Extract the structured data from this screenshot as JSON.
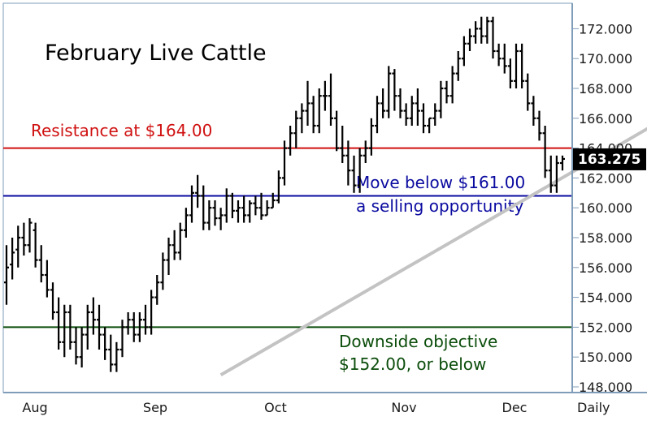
{
  "chart_data": {
    "type": "bar",
    "title": "February Live Cattle",
    "x_labels": [
      "Aug",
      "Sep",
      "Oct",
      "Nov",
      "Dec"
    ],
    "frequency_label": "Daily",
    "ylim": [
      148,
      174
    ],
    "y_ticks": [
      {
        "value": 148,
        "label": "148.000"
      },
      {
        "value": 150,
        "label": "150.000"
      },
      {
        "value": 152,
        "label": "152.000"
      },
      {
        "value": 154,
        "label": "154.000"
      },
      {
        "value": 156,
        "label": "156.000"
      },
      {
        "value": 158,
        "label": "158.000"
      },
      {
        "value": 160,
        "label": "160.000"
      },
      {
        "value": 162,
        "label": "162.000"
      },
      {
        "value": 164,
        "label": "164.000"
      },
      {
        "value": 166,
        "label": "166.000"
      },
      {
        "value": 168,
        "label": "168.000"
      },
      {
        "value": 170,
        "label": "170.000"
      },
      {
        "value": 172,
        "label": "172.000"
      }
    ],
    "last_price": {
      "value": 163.275,
      "label": "163.275"
    },
    "lines": [
      {
        "name": "resistance",
        "value": 164.0,
        "color": "#d01010",
        "label": "Resistance at $164.00"
      },
      {
        "name": "support",
        "value": 160.8,
        "color": "#0a0aa0",
        "label1": "Move below $161.00",
        "label2": "a selling opportunity"
      },
      {
        "name": "objective",
        "value": 152.0,
        "color": "#0b4d0b",
        "label1": "Downside objective",
        "label2": "$152.00, or below"
      }
    ],
    "trendline": {
      "start": [
        37,
        148.8
      ],
      "end": [
        147,
        173.5
      ],
      "color": "#c3c3c3"
    },
    "ohlc_color": "#000000",
    "bars": [
      [
        155.0,
        157.5,
        153.5,
        156.0
      ],
      [
        156.2,
        158.0,
        155.2,
        157.0
      ],
      [
        157.2,
        158.8,
        156.0,
        158.0
      ],
      [
        158.0,
        159.0,
        156.8,
        157.5
      ],
      [
        157.5,
        159.3,
        157.0,
        159.0
      ],
      [
        158.5,
        159.0,
        156.0,
        156.5
      ],
      [
        156.5,
        157.5,
        155.0,
        155.5
      ],
      [
        155.5,
        156.5,
        154.0,
        154.5
      ],
      [
        154.5,
        155.0,
        152.5,
        153.0
      ],
      [
        153.0,
        154.0,
        150.5,
        151.0
      ],
      [
        151.0,
        153.5,
        150.0,
        153.0
      ],
      [
        153.0,
        153.5,
        150.5,
        151.0
      ],
      [
        151.0,
        152.0,
        149.5,
        150.0
      ],
      [
        150.0,
        152.0,
        149.3,
        151.5
      ],
      [
        151.5,
        153.5,
        150.5,
        153.0
      ],
      [
        153.0,
        154.0,
        151.5,
        152.5
      ],
      [
        152.5,
        153.5,
        150.5,
        151.5
      ],
      [
        151.5,
        152.0,
        149.8,
        150.5
      ],
      [
        150.5,
        151.5,
        149.0,
        149.5
      ],
      [
        149.5,
        151.0,
        149.0,
        150.5
      ],
      [
        150.5,
        152.5,
        150.0,
        152.0
      ],
      [
        152.0,
        153.0,
        151.5,
        152.5
      ],
      [
        152.5,
        153.0,
        151.0,
        151.5
      ],
      [
        151.5,
        153.0,
        151.0,
        152.5
      ],
      [
        152.5,
        153.5,
        151.5,
        152.0
      ],
      [
        152.0,
        154.5,
        151.5,
        154.0
      ],
      [
        154.0,
        155.5,
        153.5,
        155.0
      ],
      [
        155.0,
        157.0,
        154.5,
        156.5
      ],
      [
        156.5,
        158.0,
        155.5,
        157.5
      ],
      [
        157.5,
        158.5,
        156.5,
        157.0
      ],
      [
        157.0,
        159.0,
        156.5,
        158.5
      ],
      [
        158.5,
        160.0,
        158.0,
        159.5
      ],
      [
        159.5,
        161.5,
        159.0,
        161.0
      ],
      [
        161.0,
        162.2,
        160.0,
        160.8
      ],
      [
        160.8,
        161.5,
        158.5,
        159.0
      ],
      [
        159.0,
        160.5,
        158.5,
        160.0
      ],
      [
        160.0,
        160.5,
        158.8,
        159.3
      ],
      [
        159.3,
        160.0,
        158.5,
        159.5
      ],
      [
        159.5,
        161.3,
        159.0,
        160.8
      ],
      [
        160.8,
        161.0,
        159.3,
        159.8
      ],
      [
        159.8,
        160.5,
        159.0,
        160.0
      ],
      [
        160.0,
        160.8,
        159.0,
        159.5
      ],
      [
        159.5,
        160.5,
        159.0,
        160.3
      ],
      [
        160.3,
        160.8,
        159.5,
        160.0
      ],
      [
        160.0,
        161.0,
        159.2,
        159.5
      ],
      [
        159.5,
        160.5,
        159.5,
        160.0
      ],
      [
        160.0,
        161.0,
        160.0,
        160.5
      ],
      [
        160.5,
        162.5,
        160.3,
        162.0
      ],
      [
        162.0,
        164.5,
        161.5,
        164.0
      ],
      [
        164.0,
        165.5,
        163.5,
        165.0
      ],
      [
        165.0,
        166.5,
        164.0,
        166.0
      ],
      [
        166.0,
        167.0,
        165.0,
        166.5
      ],
      [
        166.5,
        168.5,
        165.5,
        167.0
      ],
      [
        167.0,
        167.5,
        165.0,
        165.5
      ],
      [
        165.5,
        168.0,
        165.0,
        167.5
      ],
      [
        167.5,
        168.5,
        166.5,
        167.5
      ],
      [
        167.5,
        169.0,
        165.5,
        166.0
      ],
      [
        166.0,
        166.5,
        163.8,
        164.0
      ],
      [
        164.0,
        165.5,
        163.0,
        163.5
      ],
      [
        163.5,
        164.5,
        161.5,
        162.5
      ],
      [
        162.5,
        163.5,
        161.0,
        161.5
      ],
      [
        161.5,
        164.0,
        161.0,
        163.5
      ],
      [
        163.5,
        164.5,
        163.0,
        164.0
      ],
      [
        164.0,
        166.0,
        163.5,
        165.5
      ],
      [
        165.5,
        167.5,
        165.0,
        167.0
      ],
      [
        167.0,
        168.0,
        166.0,
        166.5
      ],
      [
        166.5,
        169.5,
        166.0,
        169.0
      ],
      [
        169.0,
        169.3,
        166.5,
        167.5
      ],
      [
        167.5,
        168.0,
        166.0,
        166.5
      ],
      [
        166.5,
        167.0,
        165.5,
        166.0
      ],
      [
        166.0,
        167.5,
        165.5,
        167.0
      ],
      [
        167.0,
        168.0,
        165.5,
        166.5
      ],
      [
        166.5,
        167.0,
        165.0,
        165.5
      ],
      [
        165.5,
        166.0,
        165.0,
        166.0
      ],
      [
        166.0,
        167.0,
        165.5,
        166.5
      ],
      [
        166.5,
        168.5,
        166.0,
        168.0
      ],
      [
        168.0,
        168.5,
        167.0,
        167.5
      ],
      [
        167.5,
        169.5,
        167.0,
        169.0
      ],
      [
        169.0,
        170.5,
        168.5,
        170.0
      ],
      [
        170.0,
        171.5,
        169.5,
        171.0
      ],
      [
        171.0,
        172.0,
        170.5,
        171.5
      ],
      [
        171.5,
        172.5,
        171.0,
        172.0
      ],
      [
        172.0,
        172.8,
        171.0,
        171.5
      ],
      [
        171.5,
        172.8,
        171.0,
        172.5
      ],
      [
        172.5,
        172.8,
        170.0,
        170.5
      ],
      [
        170.5,
        171.0,
        169.5,
        170.0
      ],
      [
        170.0,
        171.0,
        169.0,
        169.5
      ],
      [
        169.5,
        170.0,
        168.0,
        168.5
      ],
      [
        168.5,
        171.0,
        168.0,
        170.5
      ],
      [
        170.5,
        171.0,
        168.0,
        168.5
      ],
      [
        168.5,
        169.0,
        166.5,
        167.0
      ],
      [
        167.0,
        167.5,
        165.5,
        166.0
      ],
      [
        166.0,
        166.5,
        164.5,
        165.0
      ],
      [
        165.0,
        165.5,
        162.0,
        162.5
      ],
      [
        162.5,
        163.5,
        161.0,
        161.5
      ],
      [
        161.5,
        163.5,
        161.0,
        163.0
      ],
      [
        163.0,
        163.5,
        162.5,
        163.275
      ]
    ]
  }
}
